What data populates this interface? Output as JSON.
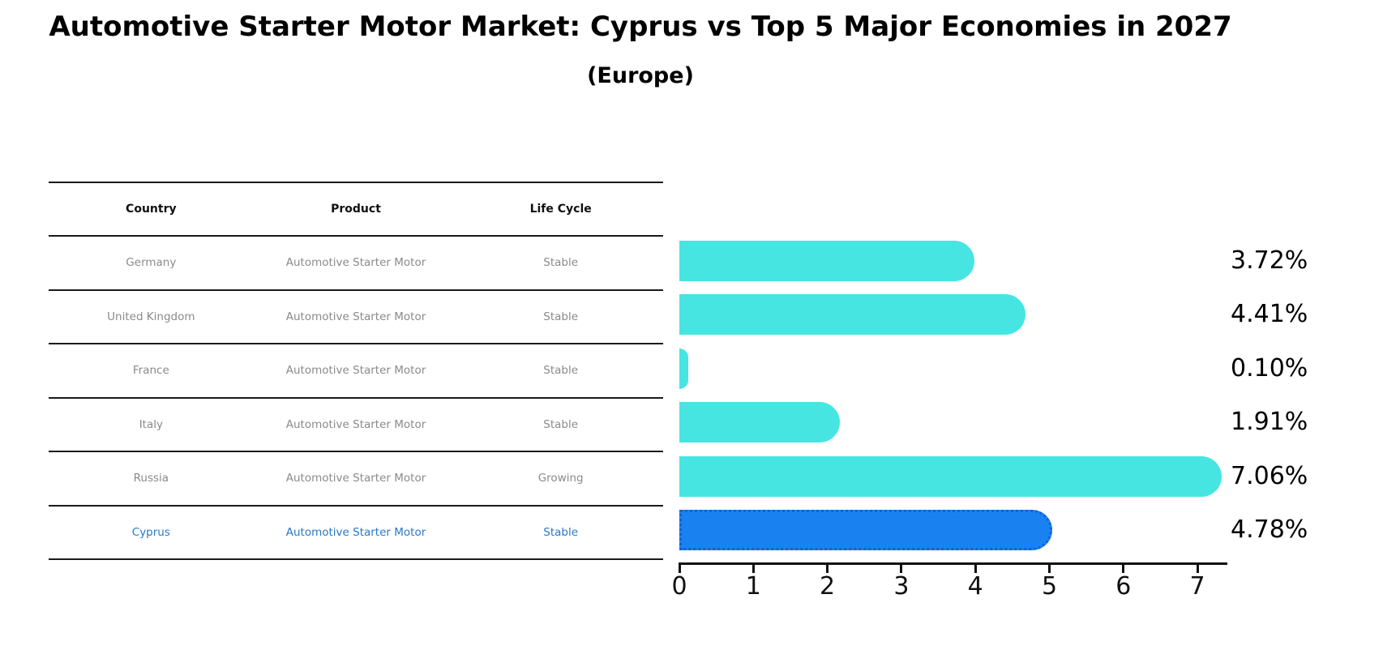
{
  "title": "Automotive Starter Motor Market: Cyprus vs Top 5 Major Economies in 2027",
  "subtitle": "(Europe)",
  "table": {
    "headers": [
      "Country",
      "Product",
      "Life Cycle"
    ],
    "rows": [
      {
        "country": "Germany",
        "product": "Automotive Starter Motor",
        "life_cycle": "Stable",
        "highlighted": false
      },
      {
        "country": "United Kingdom",
        "product": "Automotive Starter Motor",
        "life_cycle": "Stable",
        "highlighted": false
      },
      {
        "country": "France",
        "product": "Automotive Starter Motor",
        "life_cycle": "Stable",
        "highlighted": false
      },
      {
        "country": "Italy",
        "product": "Automotive Starter Motor",
        "life_cycle": "Stable",
        "highlighted": false
      },
      {
        "country": "Russia",
        "product": "Automotive Starter Motor",
        "life_cycle": "Growing",
        "highlighted": false
      },
      {
        "country": "Cyprus",
        "product": "Automotive Starter Motor",
        "life_cycle": "Stable",
        "highlighted": true
      }
    ]
  },
  "chart_data": {
    "type": "bar",
    "orientation": "horizontal",
    "title": "Automotive Starter Motor Market: Cyprus vs Top 5 Major Economies in 2027 (Europe)",
    "categories": [
      "Germany",
      "United Kingdom",
      "France",
      "Italy",
      "Russia",
      "Cyprus"
    ],
    "values": [
      3.72,
      4.41,
      0.1,
      1.91,
      7.06,
      4.78
    ],
    "value_labels": [
      "3.72%",
      "4.41%",
      "0.10%",
      "1.91%",
      "7.06%",
      "4.78%"
    ],
    "x_ticks": [
      0,
      1,
      2,
      3,
      4,
      5,
      6,
      7
    ],
    "xlim": [
      0,
      7.4
    ],
    "grid": false,
    "legend": false,
    "bar_color": "#46e5e2",
    "highlight_index": 5,
    "highlight_color": "#1a82f0",
    "highlight_border_color": "#1063d8",
    "text_color": "#000000"
  }
}
